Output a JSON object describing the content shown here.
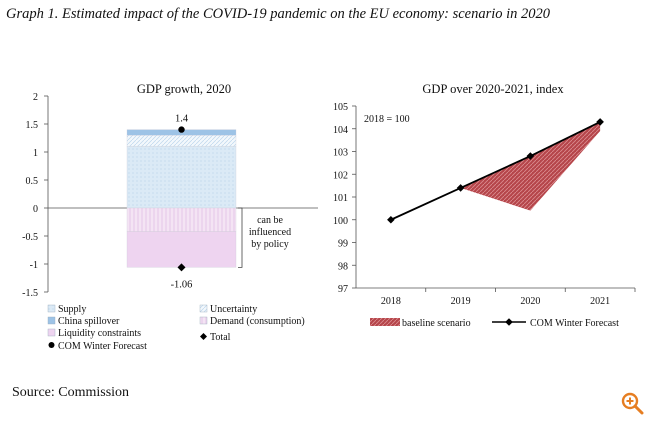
{
  "heading": "Graph 1. Estimated impact of the COVID-19 pandemic on the EU economy: scenario in 2020",
  "source": "Source: Commission",
  "icons": {
    "zoom": "zoom-in-icon"
  },
  "colors": {
    "accent": "#e67e22",
    "supply": "#dbeaf6",
    "uncertainty": "#e9f3fa",
    "china_spillover": "#9dc3e6",
    "demand": "#f1dcf1",
    "liquidity": "#e8c8ea",
    "baseline": "#b5454a",
    "line": "#000000"
  },
  "chart_data": [
    {
      "type": "bar",
      "title": "GDP growth, 2020",
      "ylim": [
        -1.5,
        2
      ],
      "yticks": [
        "2",
        "1.5",
        "1",
        "0.5",
        "0",
        "-0.5",
        "-1",
        "-1.5"
      ],
      "ytick_values": [
        2,
        1.5,
        1,
        0.5,
        0,
        -0.5,
        -1,
        -1.5
      ],
      "stacked_components": [
        {
          "name": "Supply",
          "from": 0,
          "to": 1.1
        },
        {
          "name": "Uncertainty",
          "from": 1.1,
          "to": 1.3
        },
        {
          "name": "China spillover",
          "from": 1.3,
          "to": 1.4
        },
        {
          "name": "Demand (consumption)",
          "from": 0,
          "to": -0.42
        },
        {
          "name": "Liquidity constraints",
          "from": -0.42,
          "to": -1.06
        }
      ],
      "markers": [
        {
          "name": "COM Winter Forecast",
          "value": 1.4,
          "label": "1.4"
        },
        {
          "name": "Total",
          "value": -1.06,
          "label": "-1.06"
        }
      ],
      "annotation": [
        "can be",
        "influenced",
        "by policy"
      ],
      "legend": [
        {
          "label": "Supply",
          "key": "supply"
        },
        {
          "label": "Uncertainty",
          "key": "uncertainty"
        },
        {
          "label": "China spillover",
          "key": "china_spillover"
        },
        {
          "label": "Demand (consumption)",
          "key": "demand"
        },
        {
          "label": "Liquidity constraints",
          "key": "liquidity"
        },
        {
          "label": "Total",
          "key": "total"
        },
        {
          "label": "COM Winter Forecast",
          "key": "com"
        }
      ]
    },
    {
      "type": "line",
      "title": "GDP over 2020-2021, index",
      "note": "2018 = 100",
      "categories": [
        "2018",
        "2019",
        "2020",
        "2021"
      ],
      "ylim": [
        97,
        105
      ],
      "yticks": [
        "105",
        "104",
        "103",
        "102",
        "101",
        "100",
        "99",
        "98",
        "97"
      ],
      "ytick_values": [
        105,
        104,
        103,
        102,
        101,
        100,
        99,
        98,
        97
      ],
      "series": [
        {
          "name": "COM Winter Forecast",
          "values": [
            100,
            101.4,
            102.8,
            104.3
          ]
        },
        {
          "name": "baseline scenario",
          "values": [
            null,
            101.4,
            100.4,
            103.9
          ]
        }
      ],
      "legend": [
        {
          "label": "baseline scenario",
          "key": "baseline"
        },
        {
          "label": "COM Winter Forecast",
          "key": "com"
        }
      ]
    }
  ]
}
